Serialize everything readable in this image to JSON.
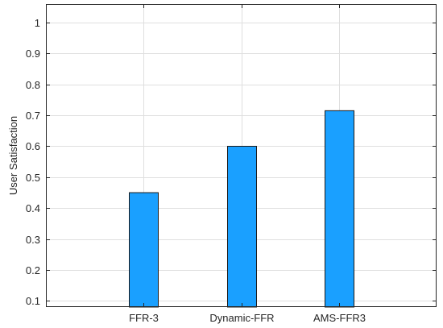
{
  "chart_data": {
    "type": "bar",
    "categories": [
      "FFR-3",
      "Dynamic-FFR",
      "AMS-FFR3"
    ],
    "values": [
      0.45,
      0.6,
      0.715
    ],
    "ylabel": "User Satisfaction",
    "xlabel": "",
    "ylim": [
      0.08,
      1.06
    ],
    "yticks": [
      "0.1",
      "0.2",
      "0.3",
      "0.4",
      "0.5",
      "0.6",
      "0.7",
      "0.8",
      "0.9",
      "1"
    ],
    "grid": true,
    "bar_color": "#1aa0ff",
    "bar_edge_color": "#1a1a1a"
  }
}
